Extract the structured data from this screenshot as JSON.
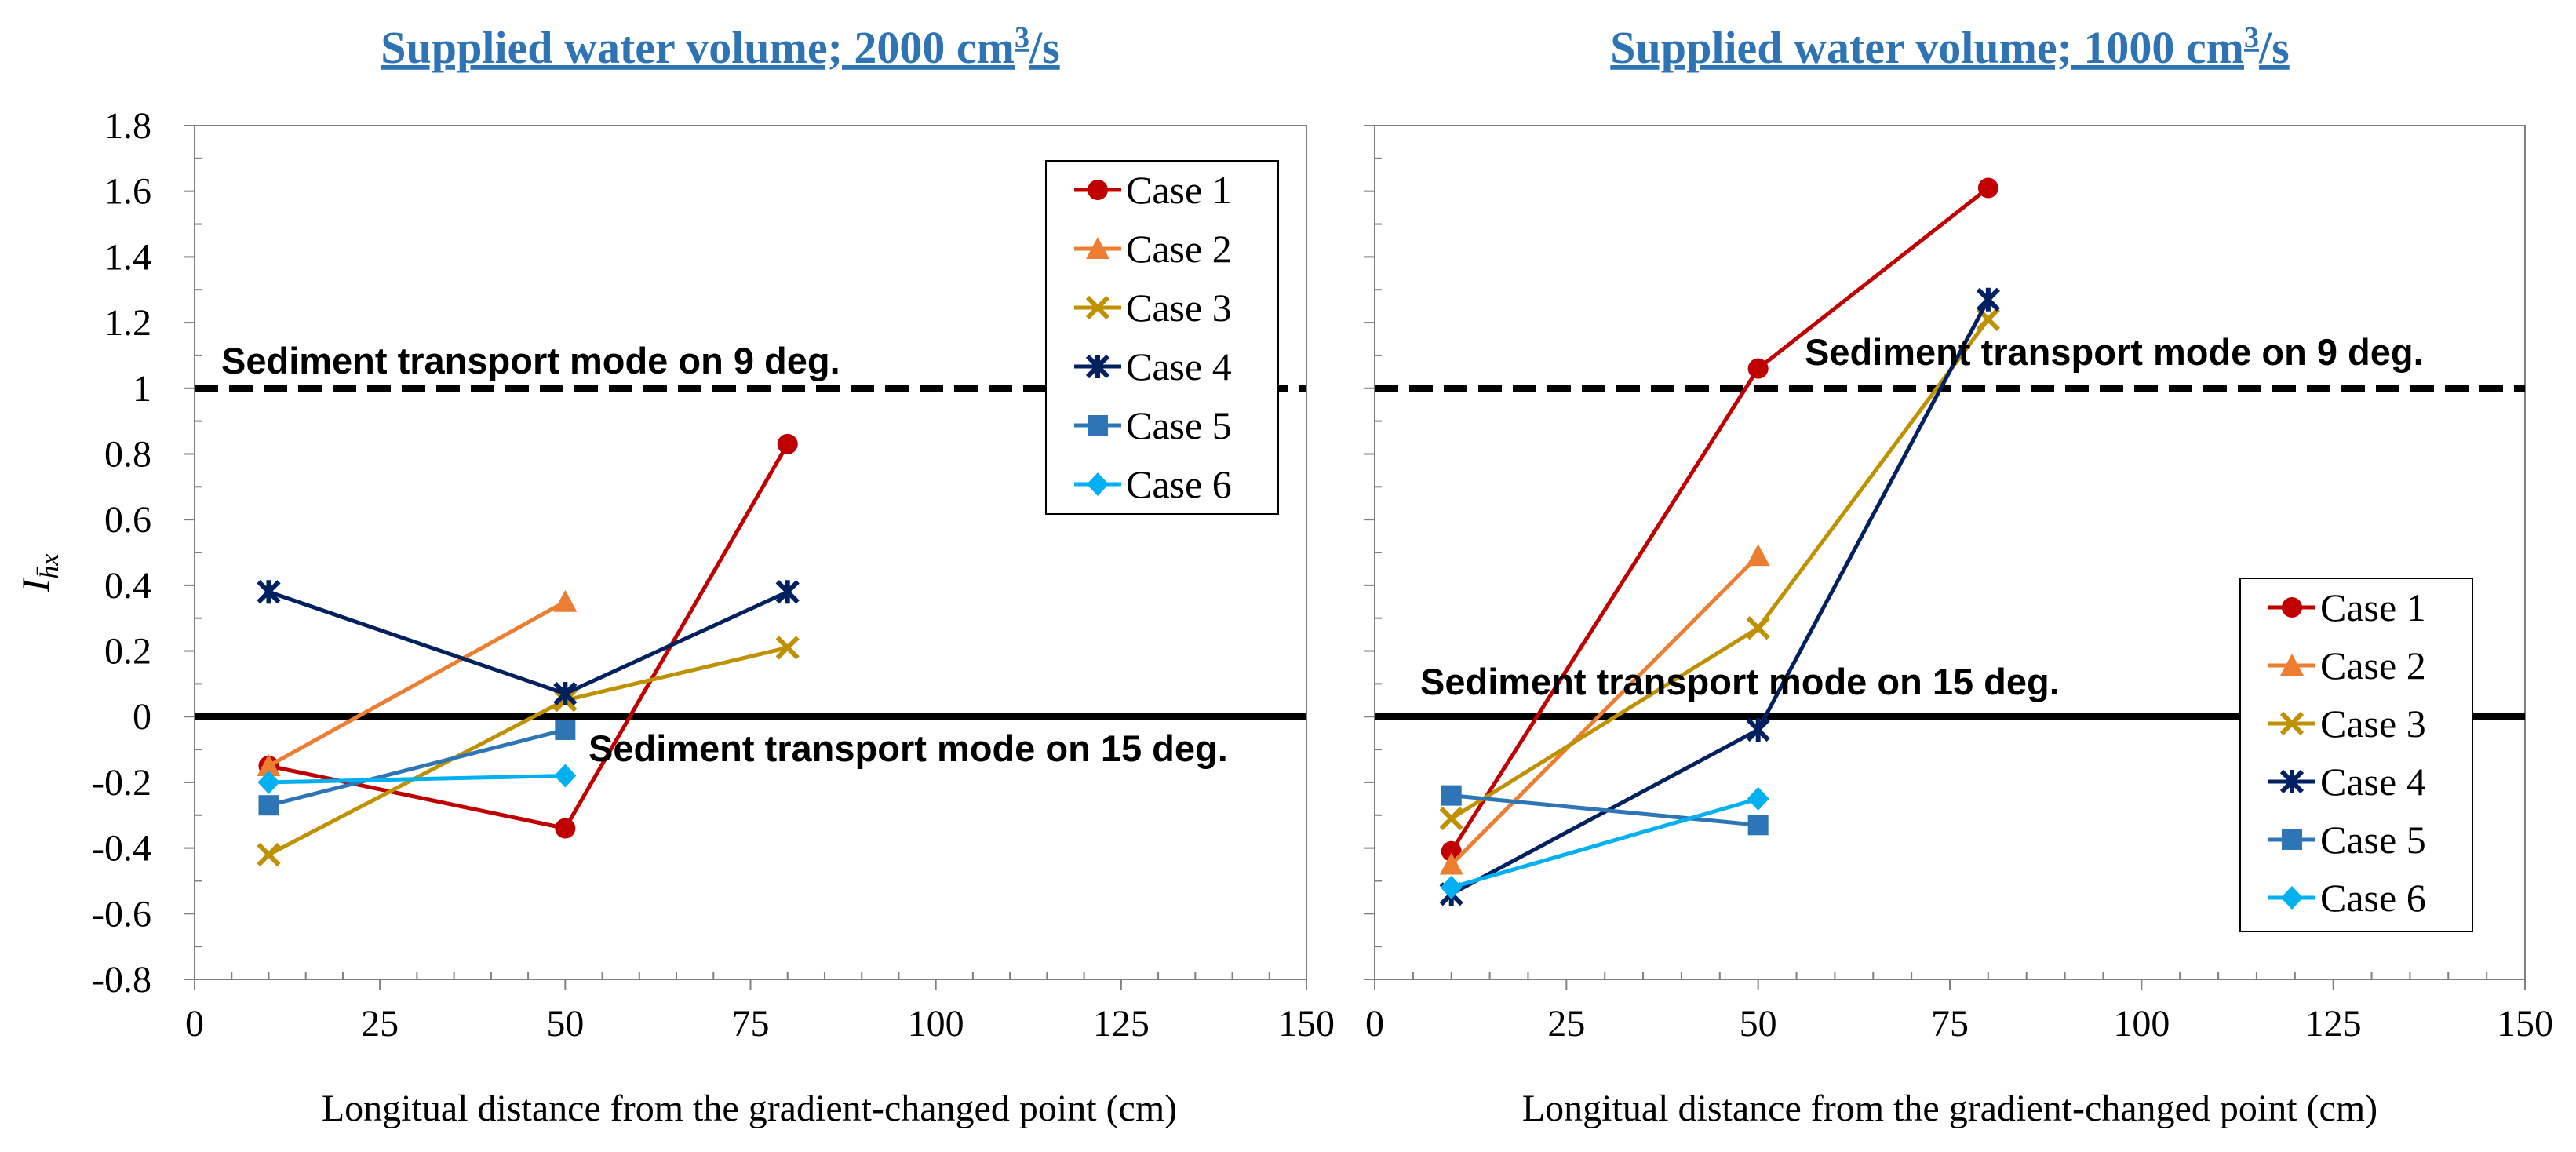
{
  "colors": {
    "case1": "#C00000",
    "case2": "#ED7D31",
    "case3": "#BF9000",
    "case4": "#002060",
    "case5": "#2E75B6",
    "case6": "#00B0F0",
    "title": "#2E74B5",
    "axis": "#7F7F7F",
    "reference": "#000000"
  },
  "chart_data": [
    {
      "type": "line",
      "title_main": "Supplied water volume; 2000 cm",
      "title_sup": "3",
      "title_tail": "/s",
      "xlabel": "Longitual distance from the gradient-changed point (cm)",
      "ylabel_main": "I",
      "ylabel_sub": "h̄x",
      "xlim": [
        0,
        150
      ],
      "ylim": [
        -0.8,
        1.8
      ],
      "xticks": [
        "0",
        "25",
        "50",
        "75",
        "100",
        "125",
        "150"
      ],
      "yticks": [
        "-0.8",
        "-0.6",
        "-0.4",
        "-0.2",
        "0",
        "0.2",
        "0.4",
        "0.6",
        "0.8",
        "1",
        "1.2",
        "1.4",
        "1.6",
        "1.8"
      ],
      "legend_position": "top-right",
      "reference_lines": [
        {
          "y": 1.0,
          "style": "dashed",
          "label": "Sediment transport mode on 9 deg."
        },
        {
          "y": 0.0,
          "style": "solid",
          "label": "Sediment transport mode on 15 deg."
        }
      ],
      "series": [
        {
          "name": "Case 1",
          "marker": "circle",
          "x": [
            10,
            50,
            80
          ],
          "y": [
            -0.15,
            -0.34,
            0.83
          ]
        },
        {
          "name": "Case 2",
          "marker": "triangle",
          "x": [
            10,
            50
          ],
          "y": [
            -0.15,
            0.35
          ]
        },
        {
          "name": "Case 3",
          "marker": "x",
          "x": [
            10,
            50,
            80
          ],
          "y": [
            -0.42,
            0.05,
            0.21
          ]
        },
        {
          "name": "Case 4",
          "marker": "star",
          "x": [
            10,
            50,
            80
          ],
          "y": [
            0.38,
            0.07,
            0.38
          ]
        },
        {
          "name": "Case 5",
          "marker": "square",
          "x": [
            10,
            50
          ],
          "y": [
            -0.27,
            -0.04
          ]
        },
        {
          "name": "Case 6",
          "marker": "diamond",
          "x": [
            10,
            50
          ],
          "y": [
            -0.2,
            -0.18
          ]
        }
      ]
    },
    {
      "type": "line",
      "title_main": "Supplied water volume; 1000 cm",
      "title_sup": "3",
      "title_tail": "/s",
      "xlabel": "Longitual distance from the gradient-changed point (cm)",
      "xlim": [
        0,
        150
      ],
      "ylim": [
        -0.8,
        1.8
      ],
      "xticks": [
        "0",
        "25",
        "50",
        "75",
        "100",
        "125",
        "150"
      ],
      "legend_position": "bottom-right",
      "reference_lines": [
        {
          "y": 1.0,
          "style": "dashed",
          "label": "Sediment transport mode on 9 deg."
        },
        {
          "y": 0.0,
          "style": "solid",
          "label": "Sediment transport mode on 15 deg."
        }
      ],
      "series": [
        {
          "name": "Case 1",
          "marker": "circle",
          "x": [
            10,
            50,
            80
          ],
          "y": [
            -0.41,
            1.06,
            1.61
          ]
        },
        {
          "name": "Case 2",
          "marker": "triangle",
          "x": [
            10,
            50
          ],
          "y": [
            -0.45,
            0.49
          ]
        },
        {
          "name": "Case 3",
          "marker": "x",
          "x": [
            10,
            50,
            80
          ],
          "y": [
            -0.31,
            0.27,
            1.21
          ]
        },
        {
          "name": "Case 4",
          "marker": "star",
          "x": [
            10,
            50,
            80
          ],
          "y": [
            -0.54,
            -0.04,
            1.27
          ]
        },
        {
          "name": "Case 5",
          "marker": "square",
          "x": [
            10,
            50
          ],
          "y": [
            -0.24,
            -0.33
          ]
        },
        {
          "name": "Case 6",
          "marker": "diamond",
          "x": [
            10,
            50
          ],
          "y": [
            -0.52,
            -0.25
          ]
        }
      ]
    }
  ]
}
